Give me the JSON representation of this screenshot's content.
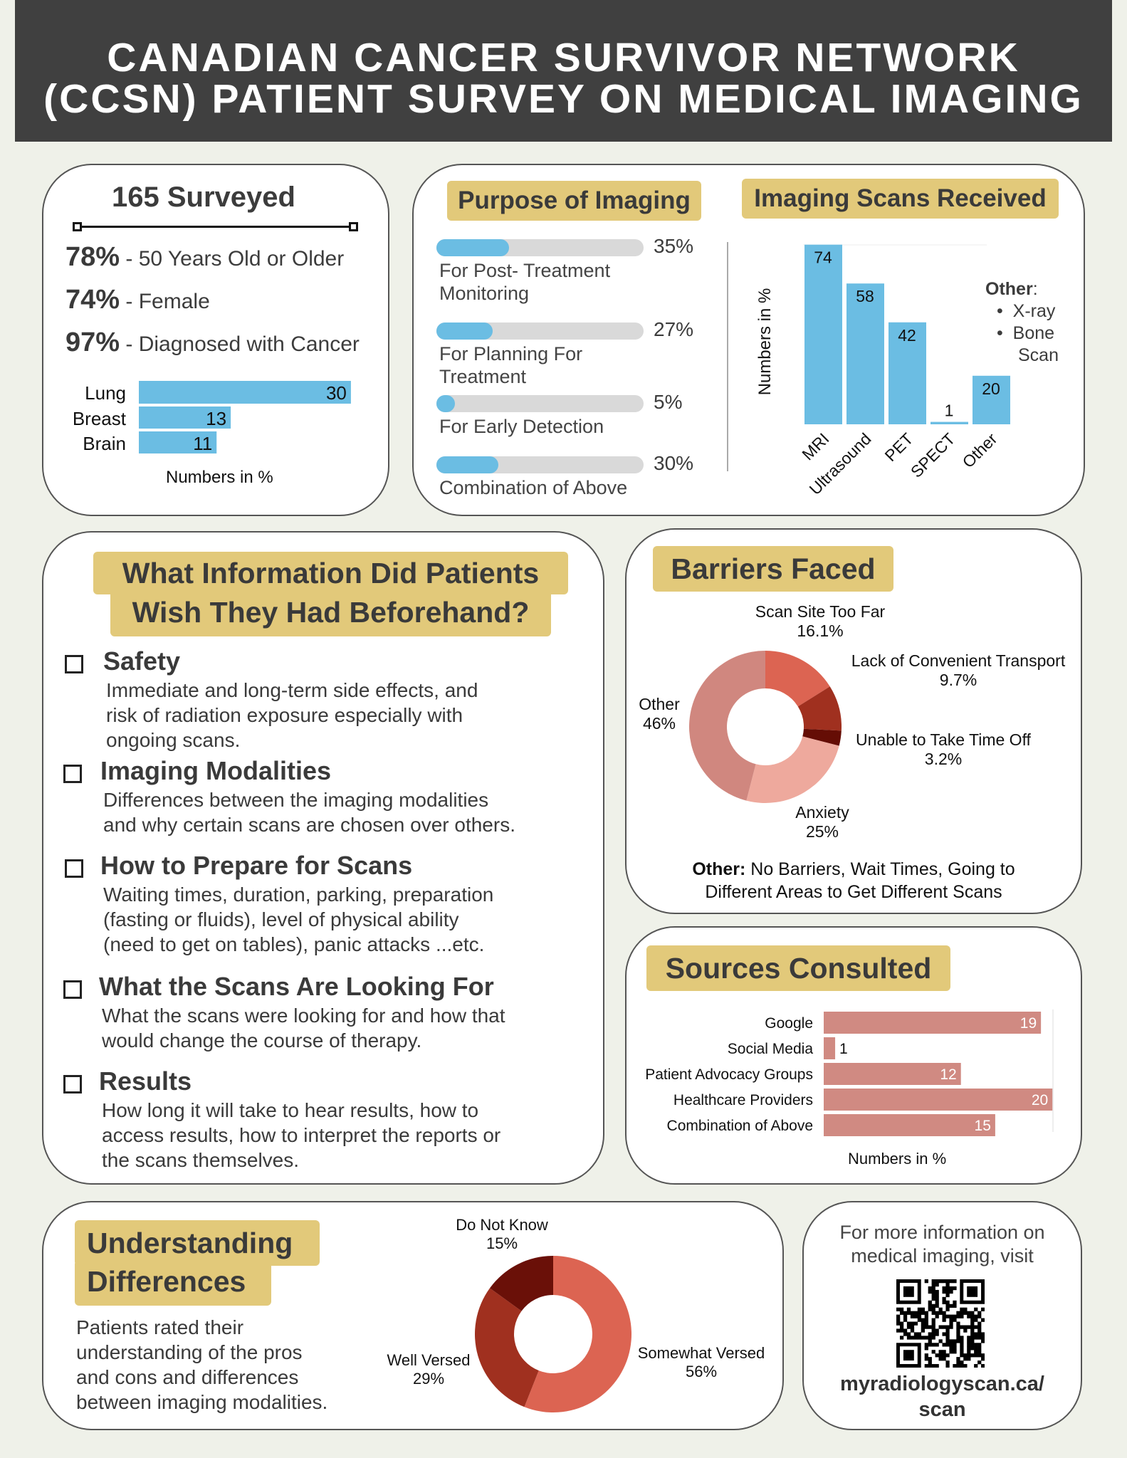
{
  "header": {
    "title_line1": "CANADIAN CANCER SURVIVOR NETWORK",
    "title_line2": "(CCSN) PATIENT SURVEY ON MEDICAL IMAGING"
  },
  "colors": {
    "gold": "#e2c97a",
    "blue": "#6bbde3",
    "salmon": "#d08a82",
    "header": "#404040"
  },
  "surveyed": {
    "title": "165 Surveyed",
    "stats": [
      {
        "value": "78%",
        "label": "- 50 Years Old or Older"
      },
      {
        "value": "74%",
        "label": "- Female"
      },
      {
        "value": "97%",
        "label": "- Diagnosed with Cancer"
      }
    ],
    "chart": {
      "type": "bar",
      "orientation": "horizontal",
      "categories": [
        "Lung",
        "Breast",
        "Brain"
      ],
      "values": [
        30,
        13,
        11
      ],
      "xlabel": "Numbers in %"
    }
  },
  "purpose": {
    "title": "Purpose of Imaging",
    "items": [
      {
        "label1": "For Post- Treatment",
        "label2": "Monitoring",
        "value": "35%",
        "pct": 35
      },
      {
        "label1": "For Planning For",
        "label2": "Treatment",
        "value": "27%",
        "pct": 27
      },
      {
        "label1": "For Early Detection",
        "label2": "",
        "value": "5%",
        "pct": 5
      },
      {
        "label1": "Combination of Above",
        "label2": "",
        "value": "30%",
        "pct": 30
      }
    ]
  },
  "scans": {
    "title": "Imaging Scans Received",
    "other_title": "Other",
    "other_items": [
      "X-ray",
      "Bone",
      "Scan"
    ]
  },
  "chart_data": [
    {
      "type": "bar",
      "title": "Imaging Scans Received",
      "categories": [
        "MRI",
        "Ultrasound",
        "PET",
        "SPECT",
        "Other"
      ],
      "values": [
        74,
        58,
        42,
        1,
        20
      ],
      "ylabel": "Numbers in %",
      "color": "#6bbde3"
    },
    {
      "type": "pie",
      "title": "Barriers Faced",
      "donut": true,
      "categories": [
        "Scan Site Too Far",
        "Lack of Convenient Transport",
        "Unable to Take Time Off",
        "Anxiety",
        "Other"
      ],
      "labels": [
        "16.1%",
        "9.7%",
        "3.2%",
        "25%",
        "46%"
      ],
      "values": [
        16.1,
        9.7,
        3.2,
        25,
        46
      ],
      "colors": [
        "#dc6452",
        "#a0301f",
        "#650d05",
        "#eea99d",
        "#d0877f"
      ]
    },
    {
      "type": "bar",
      "orientation": "horizontal",
      "title": "Sources Consulted",
      "categories": [
        "Google",
        "Social Media",
        "Patient Advocacy Groups",
        "Healthcare Providers",
        "Combination of Above"
      ],
      "values": [
        19,
        1,
        12,
        20,
        15
      ],
      "xlabel": "Numbers in %",
      "color": "#d08a82"
    },
    {
      "type": "pie",
      "title": "Understanding Differences",
      "donut": true,
      "categories": [
        "Somewhat Versed",
        "Well Versed",
        "Do Not Know"
      ],
      "labels": [
        "56%",
        "29%",
        "15%"
      ],
      "values": [
        56,
        29,
        15
      ],
      "colors": [
        "#dc6452",
        "#a0301f",
        "#6a1008"
      ]
    }
  ],
  "info": {
    "title_line1": "What Information Did Patients",
    "title_line2": "Wish They Had Beforehand?",
    "items": [
      {
        "heading": "Safety",
        "lines": [
          "Immediate and long-term side effects, and",
          "risk of radiation exposure especially with",
          "ongoing scans."
        ]
      },
      {
        "heading": "Imaging Modalities",
        "lines": [
          "Differences between the imaging modalities",
          "and why certain scans are chosen over others."
        ]
      },
      {
        "heading": "How to Prepare for Scans",
        "lines": [
          "Waiting times, duration, parking, preparation",
          "(fasting or fluids), level of physical ability",
          "(need to get on tables), panic attacks ...etc."
        ]
      },
      {
        "heading": "What the Scans Are Looking For",
        "lines": [
          "What the scans were looking for and how that",
          "would change the course of therapy."
        ]
      },
      {
        "heading": "Results",
        "lines": [
          "How long it will take to hear results, how to",
          "access results, how to interpret the reports or",
          "the scans themselves."
        ]
      }
    ]
  },
  "barriers": {
    "title": "Barriers Faced",
    "note_bold": "Other:",
    "note_line1": " No Barriers, Wait Times, Going to",
    "note_line2": "Different Areas to Get Different Scans"
  },
  "sources": {
    "title": "Sources Consulted",
    "xlabel": "Numbers in %"
  },
  "understanding": {
    "title_line1": "Understanding",
    "title_line2": "Differences",
    "desc": [
      "Patients rated their",
      "understanding of the pros",
      "and cons and differences",
      "between imaging modalities."
    ]
  },
  "more": {
    "line1": "For  more information on",
    "line2": "medical imaging, visit",
    "url1": "myradiologyscan.ca/",
    "url2": "scan",
    "qr_icon": "qr-code"
  }
}
